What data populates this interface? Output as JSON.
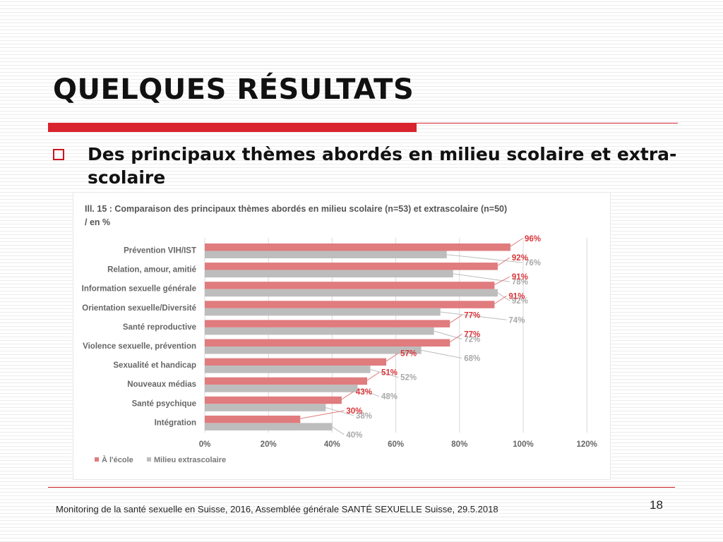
{
  "slide": {
    "title": "QUELQUES RÉSULTATS",
    "bullet": "Des principaux thèmes abordés en milieu scolaire et extra-scolaire",
    "footer": "Monitoring de la santé sexuelle en Suisse, 2016, Assemblée générale SANTÉ SEXUELLE Suisse, 29.5.2018",
    "page_number": "18",
    "accent_color": "#d9232e"
  },
  "chart_data": {
    "type": "bar",
    "orientation": "horizontal",
    "title": "Ill. 15 : Comparaison des principaux thèmes abordés en milieu scolaire (n=53) et extrascolaire (n=50) / en %",
    "categories": [
      "Prévention VIH/IST",
      "Relation, amour, amitié",
      "Information sexuelle générale",
      "Orientation sexuelle/Diversité",
      "Santé reproductive",
      "Violence sexuelle, prévention",
      "Sexualité et handicap",
      "Nouveaux médias",
      "Santé psychique",
      "Intégration"
    ],
    "series": [
      {
        "name": "À l'école",
        "color": "#e07b7e",
        "label_color": "#d9363b",
        "values": [
          96,
          92,
          91,
          91,
          77,
          77,
          57,
          51,
          43,
          30
        ],
        "labels": [
          "96%",
          "92%",
          "91%",
          "91%",
          "77%",
          "77%",
          "57%",
          "51%",
          "43%",
          "30%"
        ]
      },
      {
        "name": "Milieu extrascolaire",
        "color": "#bdbdbd",
        "label_color": "#a9a9a9",
        "values": [
          76,
          78,
          92,
          74,
          72,
          68,
          52,
          48,
          38,
          40
        ],
        "labels": [
          "76%",
          "78%",
          "92%",
          "74%",
          "72%",
          "68%",
          "52%",
          "48%",
          "38%",
          "40%"
        ]
      }
    ],
    "xlim": [
      0,
      120
    ],
    "xticks": [
      "0%",
      "20%",
      "40%",
      "60%",
      "80%",
      "100%",
      "120%"
    ],
    "xtick_values": [
      0,
      20,
      40,
      60,
      80,
      100,
      120
    ],
    "grid": true,
    "legend_position": "bottom-left"
  }
}
